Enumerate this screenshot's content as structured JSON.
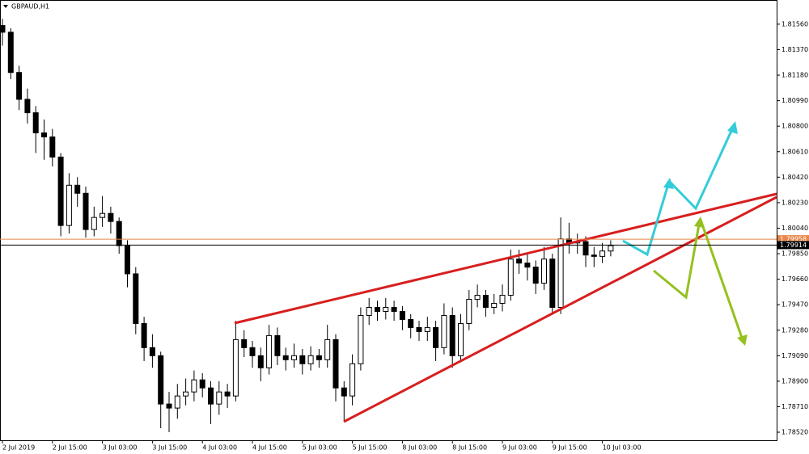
{
  "chart_data": {
    "type": "candlestick",
    "title": "GBPAUD,H1",
    "categories": [
      "2 Jul 2019",
      null,
      null,
      null,
      null,
      null,
      "2 Jul 15:00",
      null,
      null,
      null,
      null,
      null,
      "3 Jul 03:00",
      null,
      null,
      null,
      null,
      null,
      "3 Jul 15:00",
      null,
      null,
      null,
      null,
      null,
      "4 Jul 03:00",
      null,
      null,
      null,
      null,
      null,
      "4 Jul 15:00",
      null,
      null,
      null,
      null,
      null,
      "5 Jul 03:00",
      null,
      null,
      null,
      null,
      null,
      "5 Jul 15:00",
      null,
      null,
      null,
      null,
      null,
      "8 Jul 03:00",
      null,
      null,
      null,
      null,
      null,
      "8 Jul 15:00",
      null,
      null,
      null,
      null,
      null,
      "9 Jul 03:00",
      null,
      null,
      null,
      null,
      null,
      "9 Jul 15:00",
      null,
      null,
      null,
      null,
      null,
      "10 Jul 03:00",
      null
    ],
    "open": [
      1.8155,
      1.815,
      1.812,
      1.81,
      1.809,
      1.8075,
      1.8072,
      1.8057,
      1.8006,
      1.8036,
      1.803,
      1.8003,
      1.8012,
      1.8015,
      1.8009,
      1.7991,
      1.797,
      1.7933,
      1.7915,
      1.7909,
      1.7873,
      1.787,
      1.7879,
      1.7882,
      1.7891,
      1.7885,
      1.7873,
      1.7882,
      1.7879,
      1.7921,
      1.7915,
      1.7909,
      1.79,
      1.7924,
      1.7909,
      1.7906,
      1.7909,
      1.7903,
      1.7909,
      1.7906,
      1.7921,
      1.7885,
      1.7879,
      1.7903,
      1.7939,
      1.7945,
      1.7942,
      1.7945,
      1.7942,
      1.7936,
      1.793,
      1.7927,
      1.793,
      1.7915,
      1.7939,
      1.7909,
      1.7933,
      1.7951,
      1.7954,
      1.7945,
      1.7948,
      1.7954,
      1.7981,
      1.7978,
      1.7975,
      1.7963,
      1.7981,
      1.7945,
      1.7996,
      1.7993,
      1.7994,
      1.7984,
      1.7983,
      1.7987
    ],
    "high": [
      1.816,
      1.8153,
      1.8125,
      1.8108,
      1.8095,
      1.8085,
      1.8078,
      1.806,
      1.8045,
      1.8042,
      1.8035,
      1.802,
      1.8028,
      1.802,
      1.8012,
      1.7995,
      1.7975,
      1.7938,
      1.7925,
      1.7912,
      1.7882,
      1.7888,
      1.7892,
      1.7898,
      1.7896,
      1.789,
      1.789,
      1.7888,
      1.7935,
      1.7928,
      1.792,
      1.7915,
      1.7932,
      1.793,
      1.7915,
      1.7918,
      1.7914,
      1.7916,
      1.7914,
      1.7932,
      1.7925,
      1.789,
      1.791,
      1.7945,
      1.7952,
      1.795,
      1.7952,
      1.795,
      1.7946,
      1.794,
      1.7935,
      1.7938,
      1.7935,
      1.7948,
      1.7945,
      1.794,
      1.7958,
      1.7962,
      1.7958,
      1.7955,
      1.7962,
      1.7988,
      1.7988,
      1.7985,
      1.798,
      1.799,
      1.7985,
      1.8012,
      1.8008,
      1.8,
      1.7998,
      1.799,
      1.7993,
      1.7995
    ],
    "low": [
      1.814,
      1.8115,
      1.8092,
      1.8082,
      1.806,
      1.8055,
      1.805,
      1.7998,
      1.8,
      1.802,
      1.7997,
      1.7998,
      1.8005,
      1.8,
      1.7985,
      1.796,
      1.7925,
      1.7905,
      1.79,
      1.7855,
      1.7852,
      1.7862,
      1.7872,
      1.7875,
      1.7878,
      1.7858,
      1.7865,
      1.787,
      1.7875,
      1.7908,
      1.79,
      1.789,
      1.7895,
      1.7902,
      1.7898,
      1.79,
      1.7895,
      1.7898,
      1.79,
      1.79,
      1.7875,
      1.786,
      1.7872,
      1.7898,
      1.7932,
      1.7935,
      1.7936,
      1.7935,
      1.7928,
      1.7922,
      1.792,
      1.792,
      1.7905,
      1.791,
      1.79,
      1.7904,
      1.7928,
      1.7945,
      1.7938,
      1.794,
      1.7942,
      1.795,
      1.797,
      1.7965,
      1.7955,
      1.7958,
      1.794,
      1.794,
      1.7985,
      1.7985,
      1.7975,
      1.7975,
      1.7978,
      1.7983
    ],
    "close": [
      1.815,
      1.812,
      1.81,
      1.809,
      1.8075,
      1.8072,
      1.8057,
      1.8006,
      1.8036,
      1.803,
      1.8003,
      1.8012,
      1.8015,
      1.8009,
      1.7991,
      1.797,
      1.7933,
      1.7915,
      1.7909,
      1.7873,
      1.787,
      1.7879,
      1.7882,
      1.7891,
      1.7885,
      1.7873,
      1.7882,
      1.7879,
      1.7921,
      1.7915,
      1.7909,
      1.79,
      1.7924,
      1.7909,
      1.7906,
      1.7909,
      1.7903,
      1.7909,
      1.7906,
      1.7921,
      1.7885,
      1.7879,
      1.7903,
      1.7939,
      1.7945,
      1.7942,
      1.7945,
      1.7942,
      1.7936,
      1.793,
      1.7927,
      1.793,
      1.7915,
      1.7939,
      1.7909,
      1.7933,
      1.7951,
      1.7954,
      1.7945,
      1.7948,
      1.7954,
      1.7981,
      1.7978,
      1.7975,
      1.7963,
      1.7981,
      1.7945,
      1.7996,
      1.7993,
      1.7994,
      1.7984,
      1.7983,
      1.7987,
      1.7991
    ],
    "ylim": [
      1.7846,
      1.8174
    ],
    "yticks": [
      {
        "value": 1.8156,
        "label": "1.81560"
      },
      {
        "value": 1.8137,
        "label": "1.81370"
      },
      {
        "value": 1.8118,
        "label": "1.81180"
      },
      {
        "value": 1.8099,
        "label": "1.80990"
      },
      {
        "value": 1.808,
        "label": "1.80800"
      },
      {
        "value": 1.8061,
        "label": "1.80610"
      },
      {
        "value": 1.8042,
        "label": "1.80420"
      },
      {
        "value": 1.8023,
        "label": "1.80230"
      },
      {
        "value": 1.8004,
        "label": "1.80040"
      },
      {
        "value": 1.7985,
        "label": "1.79850"
      },
      {
        "value": 1.7966,
        "label": "1.79660"
      },
      {
        "value": 1.7947,
        "label": "1.79470"
      },
      {
        "value": 1.7928,
        "label": "1.79280"
      },
      {
        "value": 1.7909,
        "label": "1.79090"
      },
      {
        "value": 1.789,
        "label": "1.78900"
      },
      {
        "value": 1.7871,
        "label": "1.78710"
      },
      {
        "value": 1.7852,
        "label": "1.78520"
      }
    ],
    "price_lines": [
      {
        "value": 1.79958,
        "color": "#e8864a"
      },
      {
        "value": 1.79914,
        "color": "#000000"
      }
    ],
    "up_color": "#ffffff",
    "down_color": "#000000"
  }
}
